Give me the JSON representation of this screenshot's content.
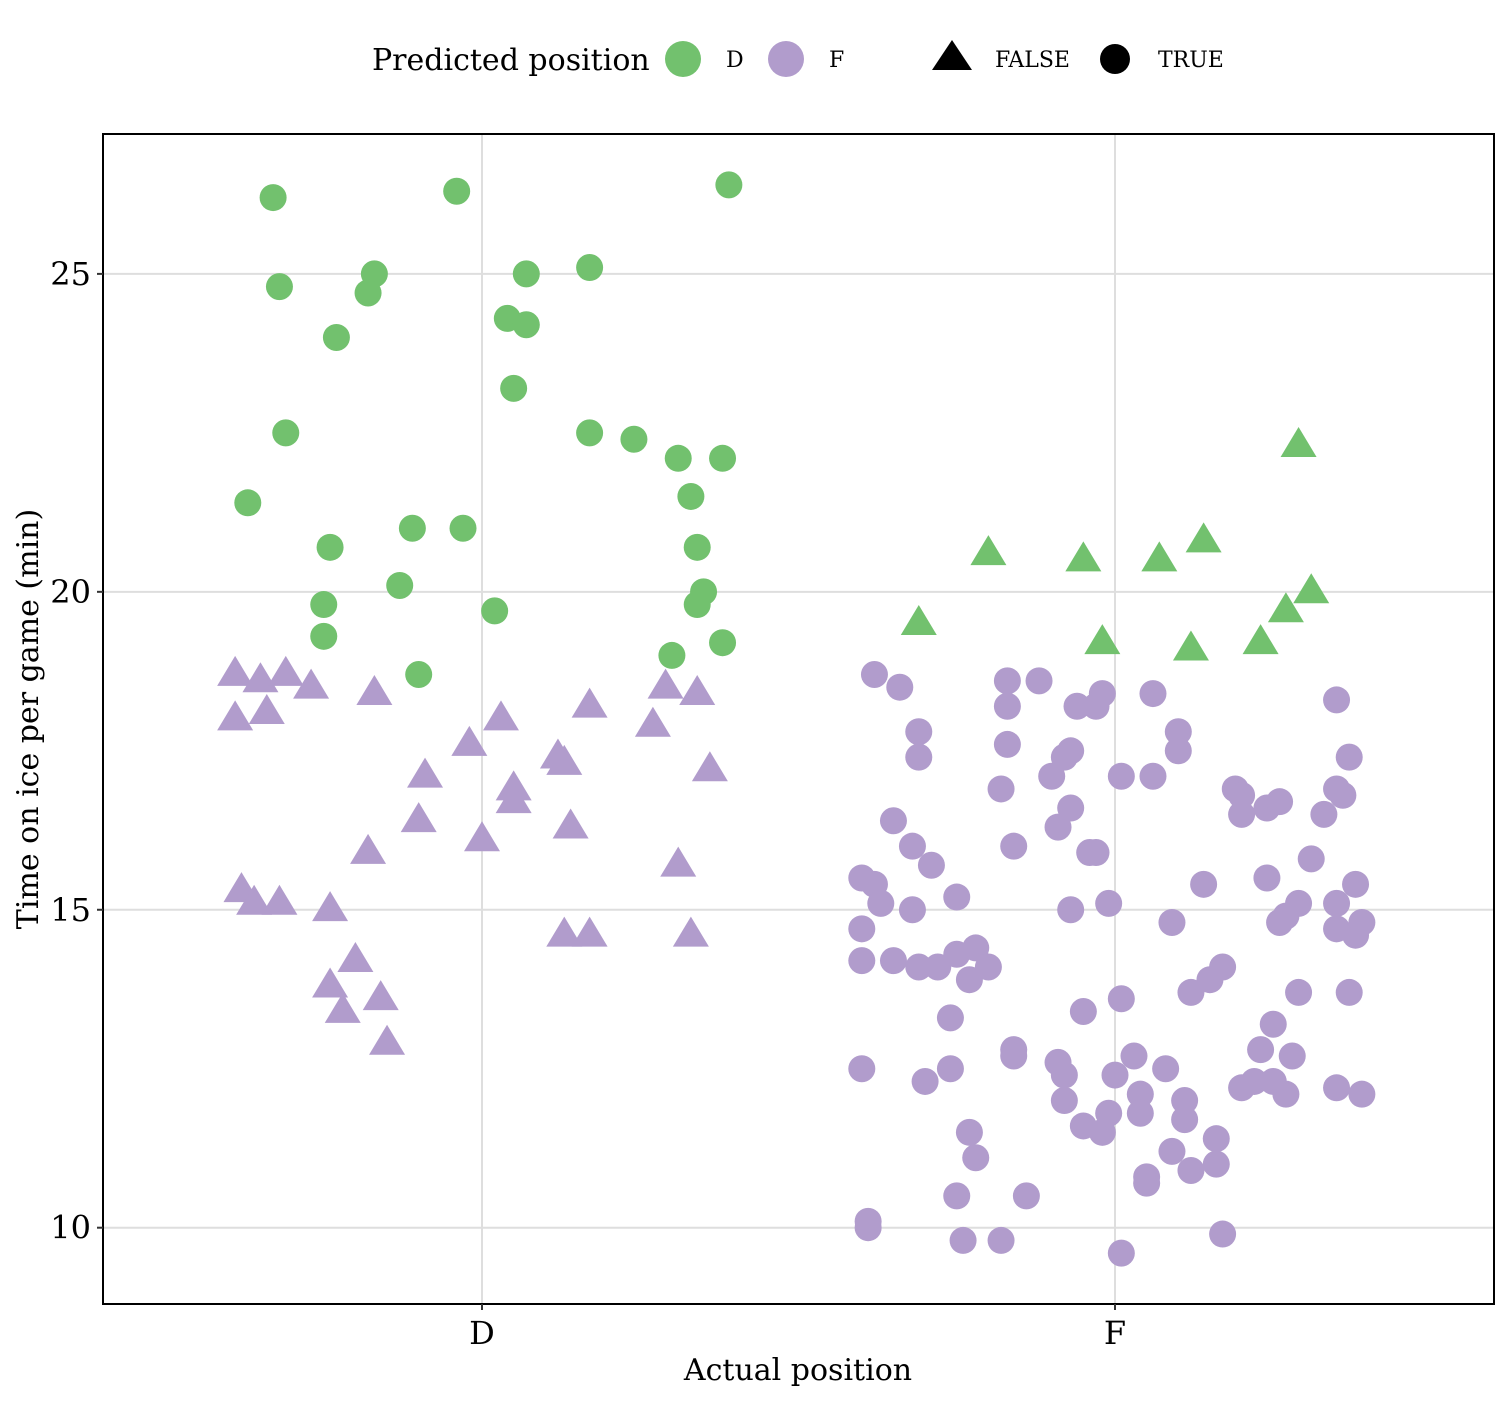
{
  "chart_data": {
    "type": "scatter",
    "title": "",
    "xlabel": "Actual position",
    "ylabel": "Time on ice per game (min)",
    "categories": [
      "D",
      "F"
    ],
    "ylim": [
      8.8,
      27.2
    ],
    "yticks": [
      10,
      15,
      20,
      25
    ],
    "grid": true,
    "legend": {
      "placement": "top",
      "color_title": "Predicted position",
      "color_entries": [
        {
          "label": "D",
          "color": "#72c16e"
        },
        {
          "label": "F",
          "color": "#b19ccc"
        }
      ],
      "shape_entries": [
        {
          "label": "FALSE",
          "shape": "triangle"
        },
        {
          "label": "TRUE",
          "shape": "circle"
        }
      ]
    },
    "series": [
      {
        "category": "D",
        "predicted": "D",
        "correct": "TRUE",
        "points": [
          {
            "jitter": -0.33,
            "y": 26.2
          },
          {
            "jitter": -0.32,
            "y": 24.8
          },
          {
            "jitter": -0.31,
            "y": 22.5
          },
          {
            "jitter": -0.37,
            "y": 21.4
          },
          {
            "jitter": -0.23,
            "y": 24.0
          },
          {
            "jitter": -0.24,
            "y": 20.7
          },
          {
            "jitter": -0.25,
            "y": 19.8
          },
          {
            "jitter": -0.25,
            "y": 19.3
          },
          {
            "jitter": -0.17,
            "y": 25.0
          },
          {
            "jitter": -0.18,
            "y": 24.7
          },
          {
            "jitter": -0.13,
            "y": 20.1
          },
          {
            "jitter": -0.11,
            "y": 21.0
          },
          {
            "jitter": -0.1,
            "y": 18.7
          },
          {
            "jitter": -0.04,
            "y": 26.3
          },
          {
            "jitter": -0.03,
            "y": 21.0
          },
          {
            "jitter": 0.02,
            "y": 19.7
          },
          {
            "jitter": 0.04,
            "y": 24.3
          },
          {
            "jitter": 0.07,
            "y": 24.2
          },
          {
            "jitter": 0.05,
            "y": 23.2
          },
          {
            "jitter": 0.07,
            "y": 25.0
          },
          {
            "jitter": 0.17,
            "y": 25.1
          },
          {
            "jitter": 0.17,
            "y": 22.5
          },
          {
            "jitter": 0.24,
            "y": 22.4
          },
          {
            "jitter": 0.31,
            "y": 22.1
          },
          {
            "jitter": 0.38,
            "y": 22.1
          },
          {
            "jitter": 0.33,
            "y": 21.5
          },
          {
            "jitter": 0.34,
            "y": 20.7
          },
          {
            "jitter": 0.35,
            "y": 20.0
          },
          {
            "jitter": 0.34,
            "y": 19.8
          },
          {
            "jitter": 0.3,
            "y": 19.0
          },
          {
            "jitter": 0.38,
            "y": 19.2
          },
          {
            "jitter": 0.39,
            "y": 26.4
          }
        ]
      },
      {
        "category": "D",
        "predicted": "F",
        "correct": "FALSE",
        "points": [
          {
            "jitter": -0.39,
            "y": 18.7
          },
          {
            "jitter": -0.35,
            "y": 18.6
          },
          {
            "jitter": -0.31,
            "y": 18.7
          },
          {
            "jitter": -0.39,
            "y": 18.0
          },
          {
            "jitter": -0.34,
            "y": 18.1
          },
          {
            "jitter": -0.27,
            "y": 18.5
          },
          {
            "jitter": -0.17,
            "y": 18.4
          },
          {
            "jitter": -0.38,
            "y": 15.3
          },
          {
            "jitter": -0.36,
            "y": 15.1
          },
          {
            "jitter": -0.32,
            "y": 15.1
          },
          {
            "jitter": -0.24,
            "y": 15.0
          },
          {
            "jitter": -0.18,
            "y": 15.9
          },
          {
            "jitter": -0.09,
            "y": 17.1
          },
          {
            "jitter": -0.1,
            "y": 16.4
          },
          {
            "jitter": -0.2,
            "y": 14.2
          },
          {
            "jitter": -0.24,
            "y": 13.8
          },
          {
            "jitter": -0.22,
            "y": 13.4
          },
          {
            "jitter": -0.16,
            "y": 13.6
          },
          {
            "jitter": -0.15,
            "y": 12.9
          },
          {
            "jitter": -0.02,
            "y": 17.6
          },
          {
            "jitter": 0.0,
            "y": 16.1
          },
          {
            "jitter": 0.03,
            "y": 18.0
          },
          {
            "jitter": 0.05,
            "y": 16.9
          },
          {
            "jitter": 0.05,
            "y": 16.7
          },
          {
            "jitter": 0.12,
            "y": 17.4
          },
          {
            "jitter": 0.13,
            "y": 17.3
          },
          {
            "jitter": 0.14,
            "y": 16.3
          },
          {
            "jitter": 0.17,
            "y": 18.2
          },
          {
            "jitter": 0.13,
            "y": 14.6
          },
          {
            "jitter": 0.17,
            "y": 14.6
          },
          {
            "jitter": 0.27,
            "y": 17.9
          },
          {
            "jitter": 0.29,
            "y": 18.5
          },
          {
            "jitter": 0.34,
            "y": 18.4
          },
          {
            "jitter": 0.36,
            "y": 17.2
          },
          {
            "jitter": 0.31,
            "y": 15.7
          },
          {
            "jitter": 0.33,
            "y": 14.6
          }
        ]
      },
      {
        "category": "F",
        "predicted": "D",
        "correct": "FALSE",
        "points": [
          {
            "jitter": -0.31,
            "y": 19.5
          },
          {
            "jitter": -0.2,
            "y": 20.6
          },
          {
            "jitter": -0.05,
            "y": 20.5
          },
          {
            "jitter": 0.07,
            "y": 20.5
          },
          {
            "jitter": 0.14,
            "y": 20.8
          },
          {
            "jitter": -0.02,
            "y": 19.2
          },
          {
            "jitter": 0.12,
            "y": 19.1
          },
          {
            "jitter": 0.23,
            "y": 19.2
          },
          {
            "jitter": 0.27,
            "y": 19.7
          },
          {
            "jitter": 0.31,
            "y": 20.0
          },
          {
            "jitter": 0.29,
            "y": 22.3
          }
        ]
      },
      {
        "category": "F",
        "predicted": "F",
        "correct": "TRUE",
        "points": [
          {
            "jitter": -0.38,
            "y": 18.7
          },
          {
            "jitter": -0.34,
            "y": 18.5
          },
          {
            "jitter": -0.31,
            "y": 17.8
          },
          {
            "jitter": -0.31,
            "y": 17.4
          },
          {
            "jitter": -0.35,
            "y": 16.4
          },
          {
            "jitter": -0.32,
            "y": 16.0
          },
          {
            "jitter": -0.29,
            "y": 15.7
          },
          {
            "jitter": -0.4,
            "y": 15.5
          },
          {
            "jitter": -0.38,
            "y": 15.4
          },
          {
            "jitter": -0.37,
            "y": 15.1
          },
          {
            "jitter": -0.32,
            "y": 15.0
          },
          {
            "jitter": -0.25,
            "y": 15.2
          },
          {
            "jitter": -0.4,
            "y": 14.7
          },
          {
            "jitter": -0.4,
            "y": 14.2
          },
          {
            "jitter": -0.35,
            "y": 14.2
          },
          {
            "jitter": -0.31,
            "y": 14.1
          },
          {
            "jitter": -0.28,
            "y": 14.1
          },
          {
            "jitter": -0.25,
            "y": 14.3
          },
          {
            "jitter": -0.22,
            "y": 14.4
          },
          {
            "jitter": -0.23,
            "y": 13.9
          },
          {
            "jitter": -0.2,
            "y": 14.1
          },
          {
            "jitter": -0.26,
            "y": 13.3
          },
          {
            "jitter": -0.4,
            "y": 12.5
          },
          {
            "jitter": -0.3,
            "y": 12.3
          },
          {
            "jitter": -0.26,
            "y": 12.5
          },
          {
            "jitter": -0.23,
            "y": 11.5
          },
          {
            "jitter": -0.22,
            "y": 11.1
          },
          {
            "jitter": -0.25,
            "y": 10.5
          },
          {
            "jitter": -0.39,
            "y": 10.1
          },
          {
            "jitter": -0.39,
            "y": 10.0
          },
          {
            "jitter": -0.24,
            "y": 9.8
          },
          {
            "jitter": -0.18,
            "y": 9.8
          },
          {
            "jitter": -0.14,
            "y": 10.5
          },
          {
            "jitter": -0.16,
            "y": 12.8
          },
          {
            "jitter": -0.16,
            "y": 12.7
          },
          {
            "jitter": -0.09,
            "y": 12.6
          },
          {
            "jitter": -0.08,
            "y": 12.4
          },
          {
            "jitter": -0.08,
            "y": 12.0
          },
          {
            "jitter": -0.05,
            "y": 11.6
          },
          {
            "jitter": -0.02,
            "y": 11.5
          },
          {
            "jitter": -0.01,
            "y": 11.8
          },
          {
            "jitter": 0.0,
            "y": 12.4
          },
          {
            "jitter": -0.05,
            "y": 13.4
          },
          {
            "jitter": 0.01,
            "y": 13.6
          },
          {
            "jitter": 0.03,
            "y": 12.7
          },
          {
            "jitter": 0.04,
            "y": 12.1
          },
          {
            "jitter": 0.04,
            "y": 11.8
          },
          {
            "jitter": 0.08,
            "y": 12.5
          },
          {
            "jitter": 0.05,
            "y": 10.8
          },
          {
            "jitter": 0.05,
            "y": 10.7
          },
          {
            "jitter": 0.01,
            "y": 9.6
          },
          {
            "jitter": 0.09,
            "y": 11.2
          },
          {
            "jitter": 0.11,
            "y": 12.0
          },
          {
            "jitter": 0.11,
            "y": 11.7
          },
          {
            "jitter": 0.12,
            "y": 10.9
          },
          {
            "jitter": 0.16,
            "y": 11.0
          },
          {
            "jitter": 0.16,
            "y": 11.4
          },
          {
            "jitter": 0.17,
            "y": 9.9
          },
          {
            "jitter": 0.12,
            "y": 13.7
          },
          {
            "jitter": 0.15,
            "y": 13.9
          },
          {
            "jitter": 0.17,
            "y": 14.1
          },
          {
            "jitter": 0.09,
            "y": 14.8
          },
          {
            "jitter": -0.07,
            "y": 15.0
          },
          {
            "jitter": -0.01,
            "y": 15.1
          },
          {
            "jitter": -0.17,
            "y": 18.2
          },
          {
            "jitter": -0.17,
            "y": 17.6
          },
          {
            "jitter": -0.16,
            "y": 16.0
          },
          {
            "jitter": -0.18,
            "y": 16.9
          },
          {
            "jitter": -0.17,
            "y": 18.6
          },
          {
            "jitter": -0.12,
            "y": 18.6
          },
          {
            "jitter": -0.07,
            "y": 17.5
          },
          {
            "jitter": -0.08,
            "y": 17.4
          },
          {
            "jitter": -0.1,
            "y": 17.1
          },
          {
            "jitter": -0.09,
            "y": 16.3
          },
          {
            "jitter": -0.07,
            "y": 16.6
          },
          {
            "jitter": -0.04,
            "y": 15.9
          },
          {
            "jitter": -0.03,
            "y": 15.9
          },
          {
            "jitter": 0.01,
            "y": 17.1
          },
          {
            "jitter": -0.06,
            "y": 18.2
          },
          {
            "jitter": -0.03,
            "y": 18.2
          },
          {
            "jitter": -0.02,
            "y": 18.4
          },
          {
            "jitter": 0.06,
            "y": 18.4
          },
          {
            "jitter": 0.06,
            "y": 17.1
          },
          {
            "jitter": 0.1,
            "y": 17.8
          },
          {
            "jitter": 0.1,
            "y": 17.5
          },
          {
            "jitter": 0.14,
            "y": 15.4
          },
          {
            "jitter": 0.19,
            "y": 16.9
          },
          {
            "jitter": 0.2,
            "y": 16.8
          },
          {
            "jitter": 0.2,
            "y": 16.5
          },
          {
            "jitter": 0.24,
            "y": 16.6
          },
          {
            "jitter": 0.26,
            "y": 16.7
          },
          {
            "jitter": 0.24,
            "y": 15.5
          },
          {
            "jitter": 0.26,
            "y": 14.8
          },
          {
            "jitter": 0.27,
            "y": 14.9
          },
          {
            "jitter": 0.29,
            "y": 15.1
          },
          {
            "jitter": 0.31,
            "y": 15.8
          },
          {
            "jitter": 0.29,
            "y": 13.7
          },
          {
            "jitter": 0.25,
            "y": 13.2
          },
          {
            "jitter": 0.23,
            "y": 12.8
          },
          {
            "jitter": 0.28,
            "y": 12.7
          },
          {
            "jitter": 0.2,
            "y": 12.2
          },
          {
            "jitter": 0.22,
            "y": 12.3
          },
          {
            "jitter": 0.25,
            "y": 12.3
          },
          {
            "jitter": 0.27,
            "y": 12.1
          },
          {
            "jitter": 0.35,
            "y": 18.3
          },
          {
            "jitter": 0.37,
            "y": 17.4
          },
          {
            "jitter": 0.35,
            "y": 16.9
          },
          {
            "jitter": 0.36,
            "y": 16.8
          },
          {
            "jitter": 0.33,
            "y": 16.5
          },
          {
            "jitter": 0.38,
            "y": 15.4
          },
          {
            "jitter": 0.35,
            "y": 15.1
          },
          {
            "jitter": 0.35,
            "y": 14.7
          },
          {
            "jitter": 0.38,
            "y": 14.6
          },
          {
            "jitter": 0.39,
            "y": 14.8
          },
          {
            "jitter": 0.37,
            "y": 13.7
          },
          {
            "jitter": 0.35,
            "y": 12.2
          },
          {
            "jitter": 0.39,
            "y": 12.1
          }
        ]
      }
    ]
  }
}
